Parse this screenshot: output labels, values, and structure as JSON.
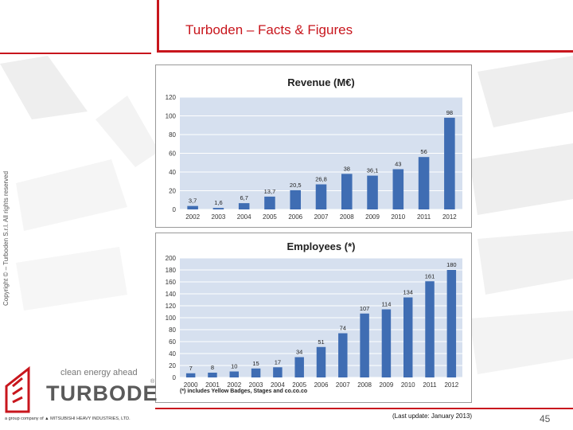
{
  "slide": {
    "title": "Turboden – Facts & Figures",
    "copyright": "Copyright © – Turboden S.r.l. All rights reserved",
    "last_update": "(Last update:  January 2013)",
    "page_number": "45",
    "logo_tagline": "clean energy ahead",
    "logo_name": "TURBODEN",
    "logo_group": "a group company of  MITSUBISHI HEAVY INDUSTRIES, LTD.",
    "accent_color": "#c8161d"
  },
  "chart_data": [
    {
      "type": "bar",
      "title": "Revenue (M€)",
      "categories": [
        "2002",
        "2003",
        "2004",
        "2005",
        "2006",
        "2007",
        "2008",
        "2009",
        "2010",
        "2011",
        "2012"
      ],
      "values": [
        3.7,
        1.6,
        6.7,
        13.7,
        20.5,
        26.8,
        38,
        36.1,
        43,
        56,
        98
      ],
      "labels": [
        "3,7",
        "1,6",
        "6,7",
        "13,7",
        "20,5",
        "26,8",
        "38",
        "36,1",
        "43",
        "56",
        "98"
      ],
      "ylim": [
        0,
        120
      ],
      "yticks": [
        0,
        20,
        40,
        60,
        80,
        100,
        120
      ],
      "bar_color": "#3f6db3",
      "plot_bg": "#d6e0ef",
      "grid": true,
      "legend": "none"
    },
    {
      "type": "bar",
      "title": "Employees (*)",
      "categories": [
        "2000",
        "2001",
        "2002",
        "2003",
        "2004",
        "2005",
        "2006",
        "2007",
        "2008",
        "2009",
        "2010",
        "2011",
        "2012"
      ],
      "values": [
        7,
        8,
        10,
        15,
        17,
        34,
        51,
        74,
        107,
        114,
        134,
        161,
        180
      ],
      "labels": [
        "7",
        "8",
        "10",
        "15",
        "17",
        "34",
        "51",
        "74",
        "107",
        "114",
        "134",
        "161",
        "180"
      ],
      "ylim": [
        0,
        200
      ],
      "yticks": [
        0,
        20,
        40,
        60,
        80,
        100,
        120,
        140,
        160,
        180,
        200
      ],
      "bar_color": "#3f6db3",
      "plot_bg": "#d6e0ef",
      "grid": true,
      "legend": "none",
      "footnote": "(*) includes Yellow Badges, Stages and co.co.co"
    }
  ]
}
